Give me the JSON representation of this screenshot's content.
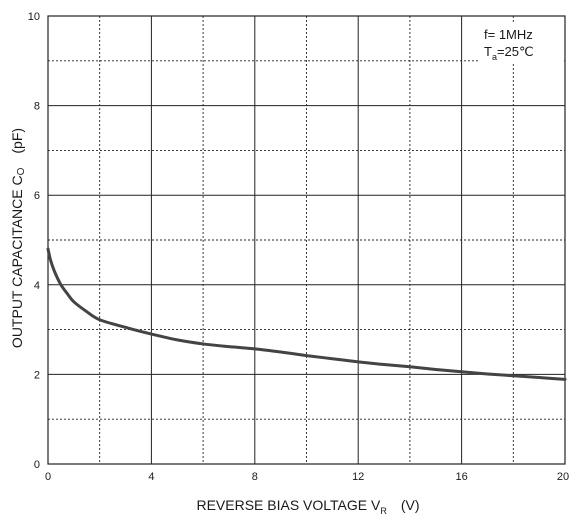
{
  "chart_data": {
    "type": "line",
    "title": "",
    "xlabel": "REVERSE BIAS VOLTAGE  V",
    "xlabel_sub": "R",
    "xlabel_unit": "(V)",
    "ylabel": "OUTPUT  CAPACITANCE  C",
    "ylabel_sub": "O",
    "ylabel_unit": "(pF)",
    "xlim": [
      0,
      20
    ],
    "ylim": [
      0,
      10
    ],
    "x_ticks": [
      0,
      4,
      8,
      12,
      16,
      20
    ],
    "y_ticks": [
      0,
      2,
      4,
      6,
      8,
      10
    ],
    "x_minor_grid": [
      2,
      6,
      10,
      14,
      18
    ],
    "y_minor_grid": [
      1,
      3,
      5,
      7,
      9
    ],
    "grid": true,
    "conditions": {
      "line1": "f= 1MHz",
      "line2_main": "T",
      "line2_sub": "a",
      "line2_value": "=25℃"
    },
    "series": [
      {
        "x": [
          0,
          0.1,
          0.25,
          0.5,
          0.75,
          1,
          1.5,
          2,
          3,
          4,
          5,
          6,
          7,
          8,
          9,
          10,
          11,
          12,
          13,
          14,
          15,
          16,
          17,
          18,
          19,
          20
        ],
        "y": [
          4.8,
          4.55,
          4.3,
          4.0,
          3.8,
          3.62,
          3.4,
          3.22,
          3.05,
          2.9,
          2.77,
          2.68,
          2.62,
          2.57,
          2.5,
          2.42,
          2.35,
          2.28,
          2.22,
          2.17,
          2.11,
          2.06,
          2.01,
          1.97,
          1.93,
          1.89
        ]
      }
    ]
  }
}
